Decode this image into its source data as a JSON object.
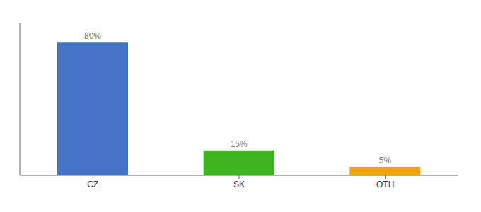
{
  "chart_data": {
    "type": "bar",
    "categories": [
      "CZ",
      "SK",
      "OTH"
    ],
    "values": [
      80,
      15,
      5
    ],
    "value_labels": [
      "80%",
      "15%",
      "5%"
    ],
    "colors": [
      "#4472c4",
      "#3cb521",
      "#f0a500"
    ],
    "ylim": [
      0,
      92
    ],
    "tick_labels": "x",
    "grid": false
  }
}
